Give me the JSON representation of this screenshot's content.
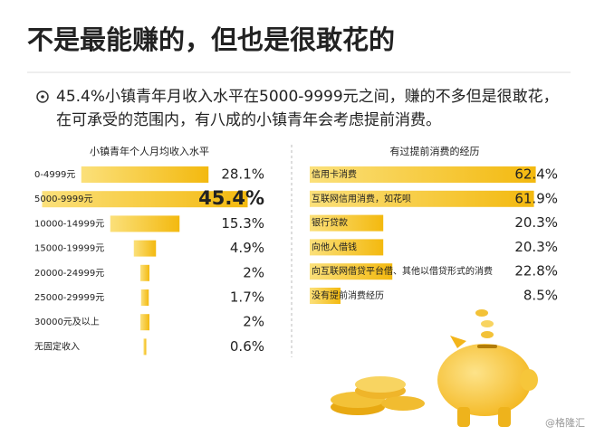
{
  "header": {
    "title": "不是最能赚的，但也是很敢花的",
    "bullet": "45.4%小镇青年月收入水平在5000-9999元之间，赚的不多但是很敢花，在可承受的范围内，有八成的小镇青年会考虑提前消费。"
  },
  "chart_data": [
    {
      "type": "bar",
      "title": "小镇青年个人月均收入水平",
      "color": "#f5c21b",
      "highlight_index": 1,
      "categories": [
        "0-4999元",
        "5000-9999元",
        "10000-14999元",
        "15000-19999元",
        "20000-24999元",
        "25000-29999元",
        "30000元及以上",
        "无固定收入"
      ],
      "values": [
        28.1,
        45.4,
        15.3,
        4.9,
        2,
        1.7,
        2,
        0.6
      ],
      "value_labels": [
        "28.1%",
        "45.4%",
        "15.3%",
        "4.9%",
        "2%",
        "1.7%",
        "2%",
        "0.6%"
      ]
    },
    {
      "type": "bar",
      "title": "有过提前消费的经历",
      "color": "#f5c21b",
      "categories": [
        "信用卡消费",
        "互联网信用消费，如花呗",
        "银行贷款",
        "向他人借钱",
        "向互联网借贷平台借、其他以借贷形式的消费",
        "没有提前消费经历"
      ],
      "values": [
        62.4,
        61.9,
        20.3,
        20.3,
        22.8,
        8.5
      ],
      "value_labels": [
        "62.4%",
        "61.9%",
        "20.3%",
        "20.3%",
        "22.8%",
        "8.5%"
      ]
    }
  ],
  "watermark": "@格隆汇"
}
